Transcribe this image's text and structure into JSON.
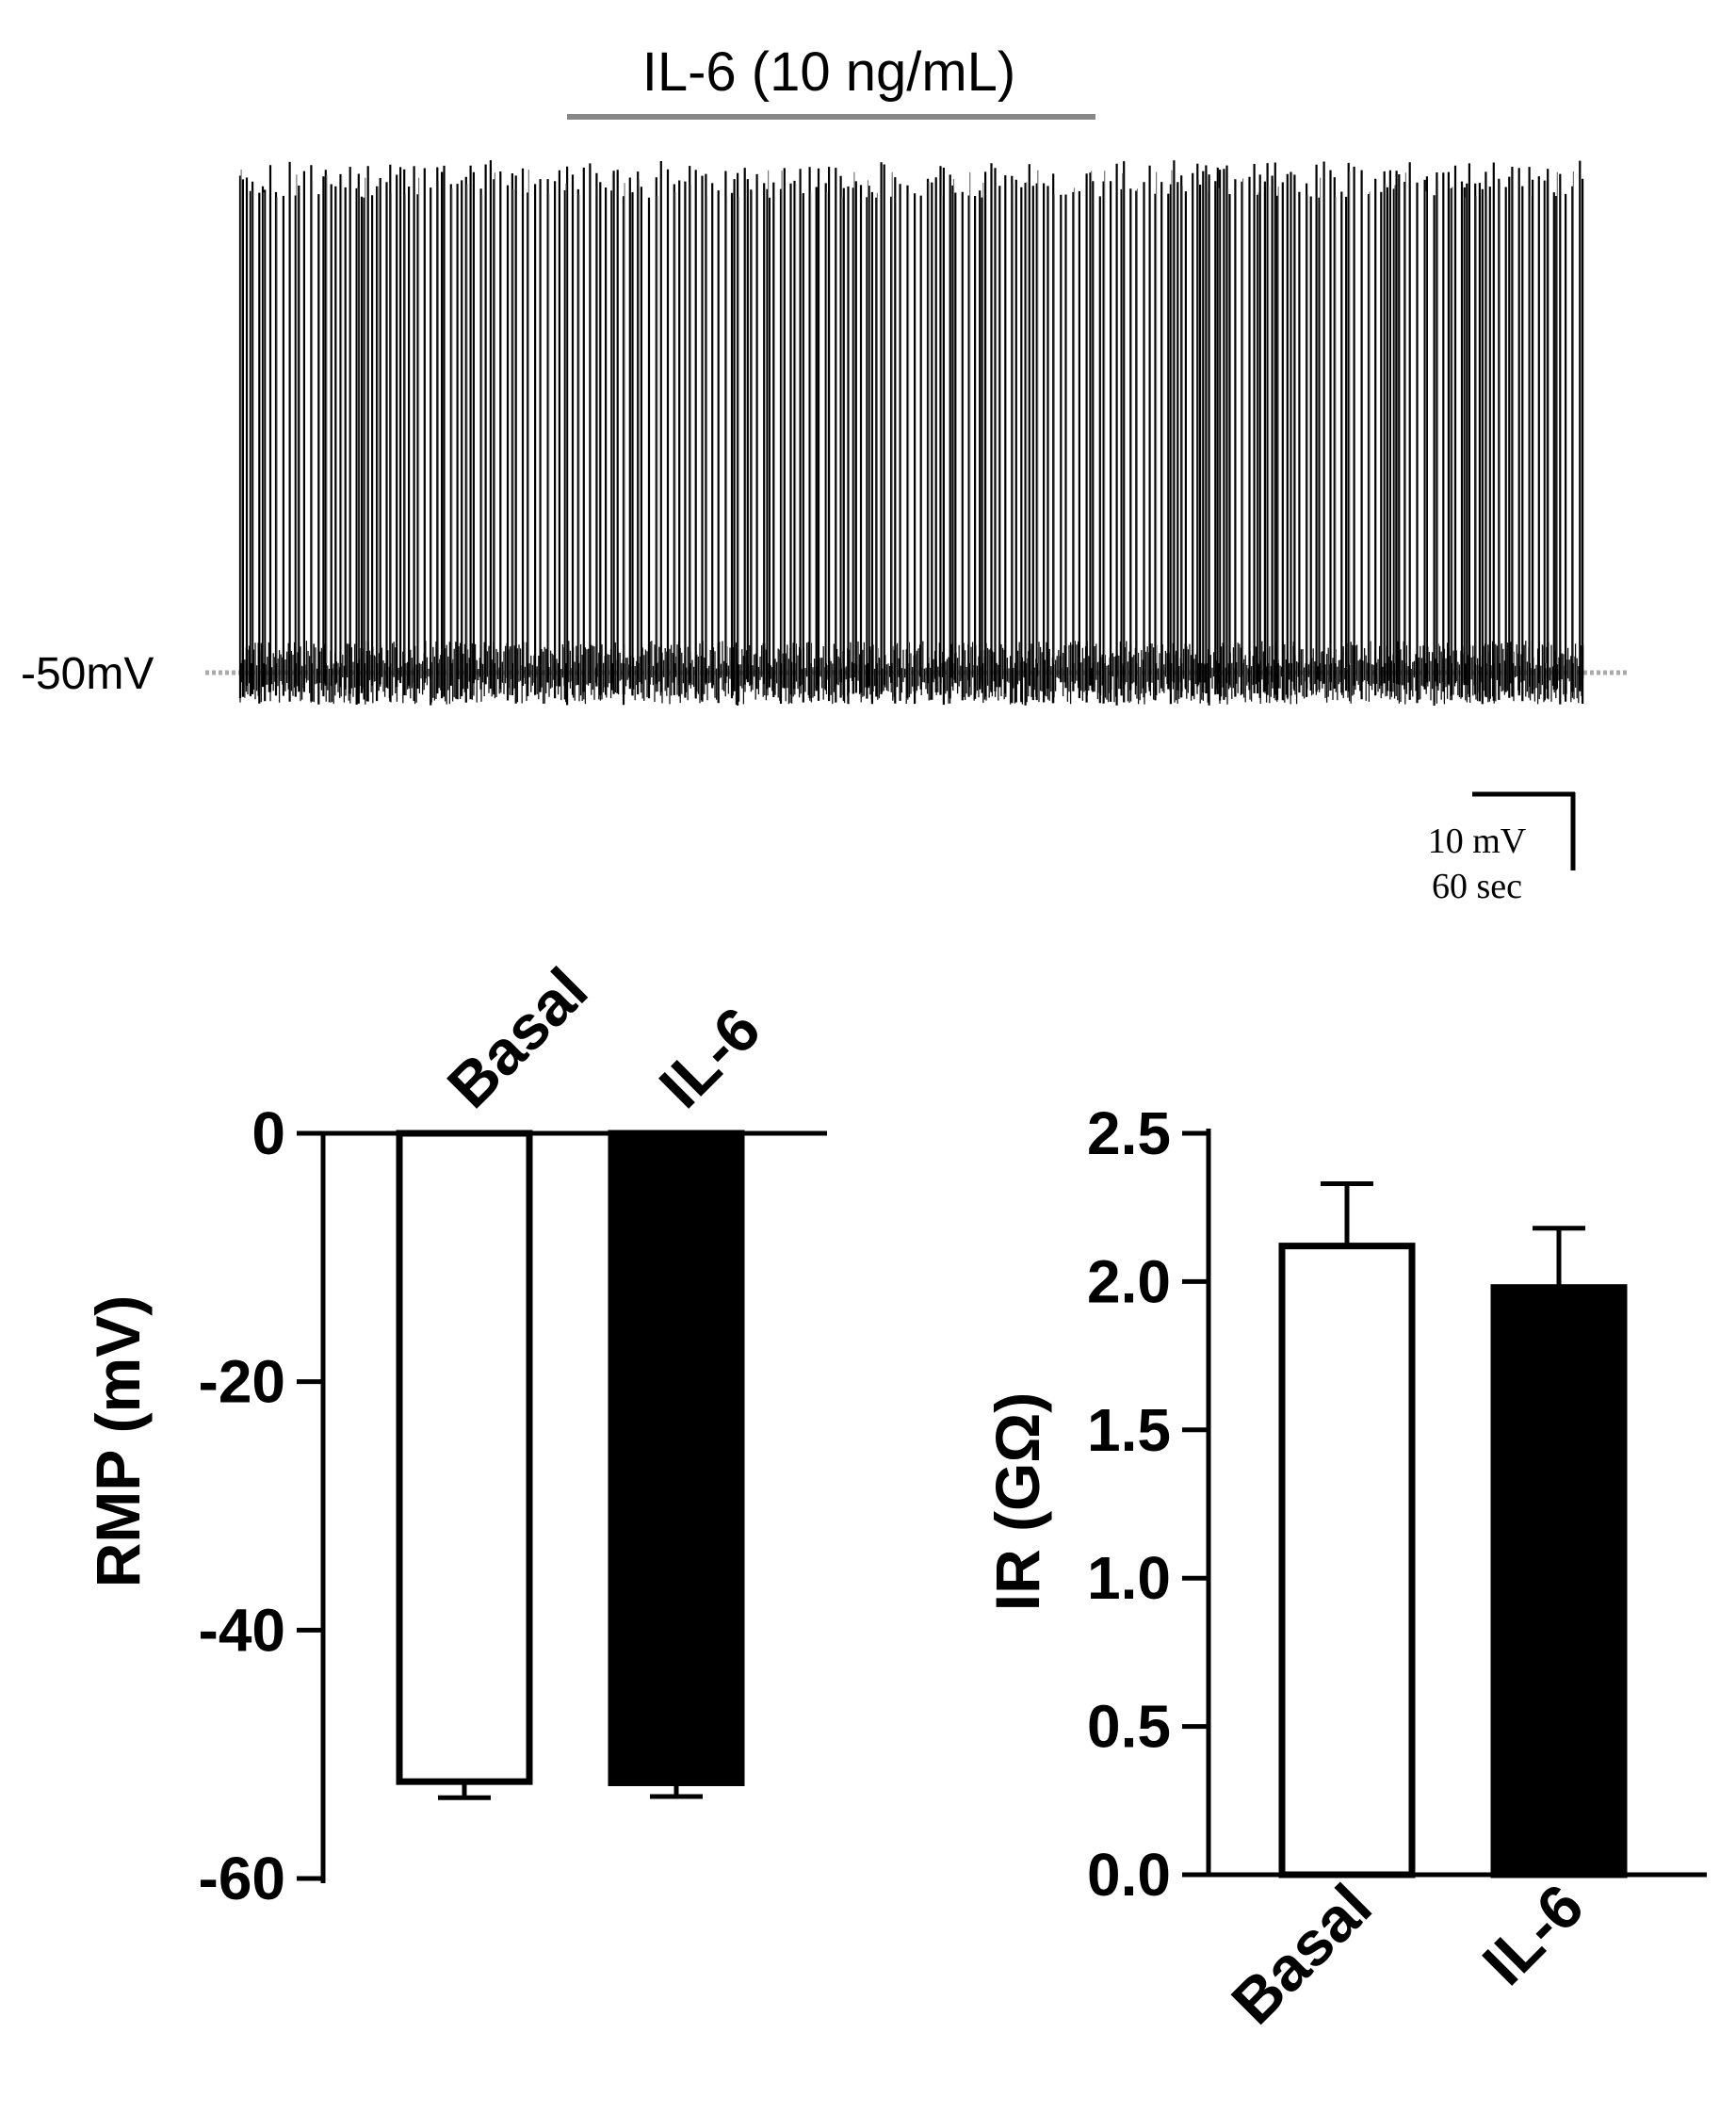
{
  "trace": {
    "drug_label": "IL-6 (10 ng/mL)",
    "baseline_label": "-50mV",
    "scalebar_voltage": "10 mV",
    "scalebar_time": "60 sec"
  },
  "chart_data": [
    {
      "type": "bar",
      "title": "",
      "categories": [
        "Basal",
        "IL-6"
      ],
      "values": [
        -52.2,
        -52.3
      ],
      "errors": [
        1.3,
        1.1
      ],
      "bar_fill": [
        "#ffffff",
        "#000000"
      ],
      "ylabel": "RMP (mV)",
      "ylim": [
        -60,
        0
      ],
      "yticks": [
        0,
        -20,
        -40,
        -60
      ],
      "ytick_labels": [
        "0",
        "-20",
        "-40",
        "-60"
      ],
      "category_position": "top",
      "grid": false
    },
    {
      "type": "bar",
      "title": "",
      "categories": [
        "Basal",
        "IL-6"
      ],
      "values": [
        2.12,
        1.98
      ],
      "errors": [
        0.21,
        0.2
      ],
      "bar_fill": [
        "#ffffff",
        "#000000"
      ],
      "ylabel": "IR (GΩ)",
      "ylim": [
        0,
        2.5
      ],
      "yticks": [
        0,
        0.5,
        1.0,
        1.5,
        2.0,
        2.5
      ],
      "ytick_labels": [
        "0.0",
        "0.5",
        "1.0",
        "1.5",
        "2.0",
        "2.5"
      ],
      "category_position": "bottom",
      "grid": false
    }
  ]
}
